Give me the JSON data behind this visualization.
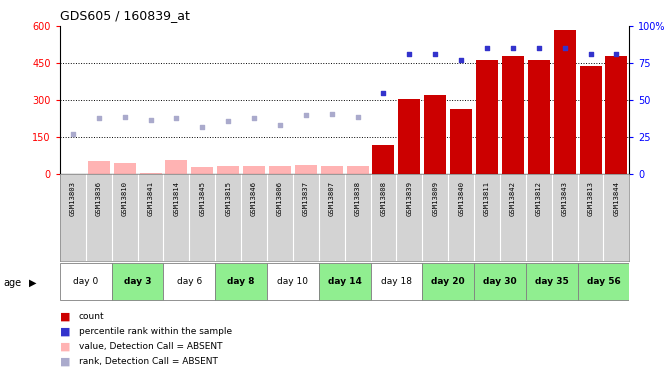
{
  "title": "GDS605 / 160839_at",
  "samples": [
    "GSM13803",
    "GSM13836",
    "GSM13810",
    "GSM13841",
    "GSM13814",
    "GSM13845",
    "GSM13815",
    "GSM13846",
    "GSM13806",
    "GSM13837",
    "GSM13807",
    "GSM13838",
    "GSM13808",
    "GSM13839",
    "GSM13809",
    "GSM13840",
    "GSM13811",
    "GSM13842",
    "GSM13812",
    "GSM13843",
    "GSM13813",
    "GSM13844"
  ],
  "days": [
    "day 0",
    "day 3",
    "day 6",
    "day 8",
    "day 10",
    "day 14",
    "day 18",
    "day 20",
    "day 30",
    "day 35",
    "day 56"
  ],
  "day_ranges": [
    [
      0,
      1
    ],
    [
      2,
      3
    ],
    [
      4,
      5
    ],
    [
      6,
      7
    ],
    [
      8,
      9
    ],
    [
      10,
      11
    ],
    [
      12,
      13
    ],
    [
      14,
      15
    ],
    [
      16,
      17
    ],
    [
      18,
      19
    ],
    [
      20,
      21
    ]
  ],
  "count_values": [
    0,
    0,
    0,
    0,
    0,
    0,
    0,
    0,
    0,
    0,
    0,
    0,
    120,
    305,
    320,
    265,
    465,
    480,
    465,
    585,
    440,
    480
  ],
  "absent_value_bars": [
    0,
    55,
    45,
    5,
    60,
    30,
    35,
    35,
    35,
    40,
    35,
    35,
    0,
    0,
    0,
    0,
    0,
    0,
    0,
    0,
    0,
    0
  ],
  "rank_absent_pct": [
    27,
    38,
    39,
    37,
    38,
    32,
    36,
    38,
    33,
    40,
    41,
    39,
    0,
    0,
    0,
    0,
    0,
    0,
    0,
    0,
    0,
    0
  ],
  "rank_present_pct": [
    0,
    0,
    0,
    0,
    0,
    0,
    0,
    0,
    0,
    0,
    0,
    0,
    55,
    81,
    81,
    77,
    85,
    85,
    85,
    85,
    81,
    81
  ],
  "ylim": [
    0,
    600
  ],
  "ylim2": [
    0,
    100
  ],
  "yticks_left": [
    0,
    150,
    300,
    450,
    600
  ],
  "yticks_right": [
    0,
    25,
    50,
    75,
    100
  ],
  "dotted_lines": [
    150,
    300,
    450
  ],
  "bar_color": "#CC0000",
  "absent_bar_color": "#FFB3B3",
  "rank_absent_color": "#AAAACC",
  "rank_present_color": "#3333CC",
  "bg_color": "#FFFFFF",
  "sample_bg_color": "#D3D3D3",
  "day_colors": [
    "#FFFFFF",
    "#90EE90",
    "#FFFFFF",
    "#90EE90",
    "#FFFFFF",
    "#90EE90",
    "#FFFFFF",
    "#90EE90",
    "#90EE90",
    "#90EE90",
    "#90EE90"
  ],
  "legend_items": [
    {
      "color": "#CC0000",
      "label": "count"
    },
    {
      "color": "#3333CC",
      "label": "percentile rank within the sample"
    },
    {
      "color": "#FFB3B3",
      "label": "value, Detection Call = ABSENT"
    },
    {
      "color": "#AAAACC",
      "label": "rank, Detection Call = ABSENT"
    }
  ]
}
